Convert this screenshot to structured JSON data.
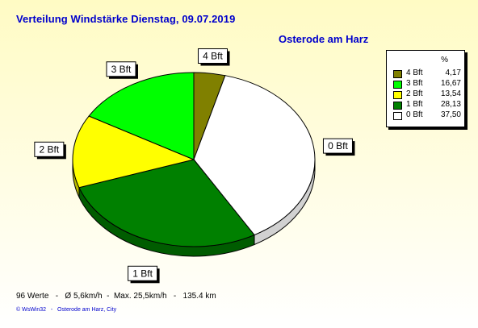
{
  "title": "Verteilung Windstärke  Dienstag, 09.07.2019",
  "subtitle": "Osterode am Harz",
  "legend": {
    "header": "%"
  },
  "footer": "96 Werte   -   Ø 5,6km/h  -  Max. 25,5km/h   -   135.4 km",
  "credit": "© WsWin32   -   Osterode am Harz, City",
  "chart_data": {
    "type": "pie",
    "title": "Verteilung Windstärke  Dienstag, 09.07.2019",
    "legend_position": "top-right",
    "slices": [
      {
        "label": "4 Bft",
        "value": 4.17,
        "value_label": "4,17",
        "color": "#808000"
      },
      {
        "label": "0 Bft",
        "value": 37.5,
        "value_label": "37,50",
        "color": "#ffffff"
      },
      {
        "label": "1 Bft",
        "value": 28.13,
        "value_label": "28,13",
        "color": "#008000"
      },
      {
        "label": "2 Bft",
        "value": 13.54,
        "value_label": "13,54",
        "color": "#ffff00"
      },
      {
        "label": "3 Bft",
        "value": 16.67,
        "value_label": "16,67",
        "color": "#00ff00"
      }
    ],
    "legend_order": [
      "4 Bft",
      "3 Bft",
      "2 Bft",
      "1 Bft",
      "0 Bft"
    ]
  }
}
